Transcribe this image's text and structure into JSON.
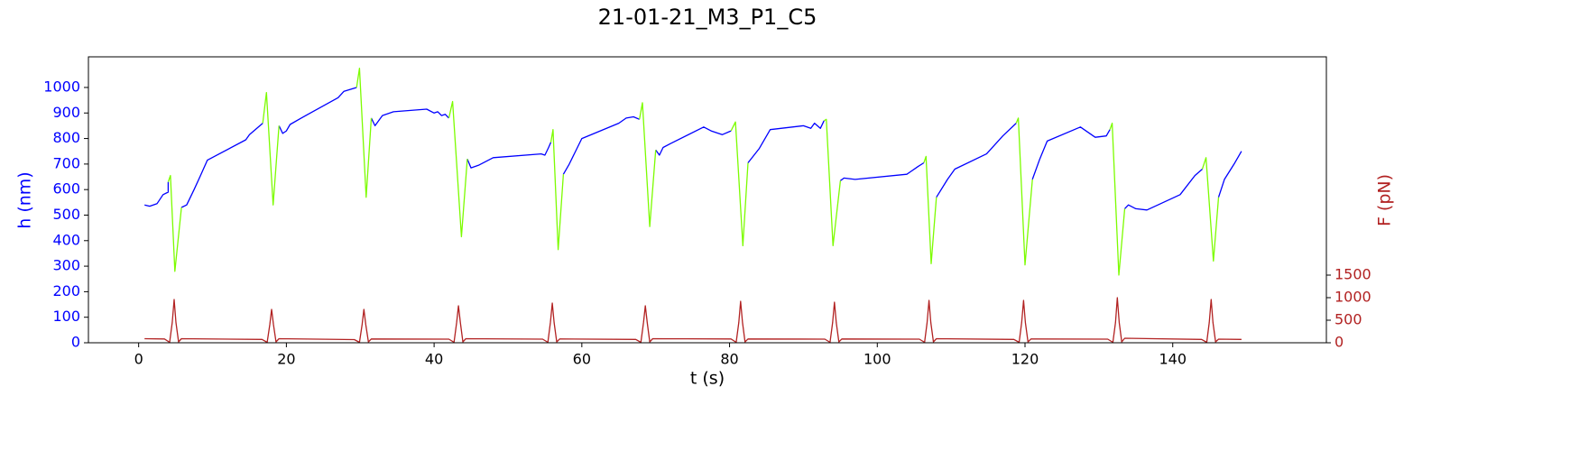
{
  "chart_data": {
    "type": "line",
    "title": "21-01-21_M3_P1_C5",
    "xlabel": "t (s)",
    "ylabel": "h (nm)",
    "y2label": "F (pN)",
    "xlim": [
      -6.8,
      160.8
    ],
    "xticks": [
      0,
      20,
      40,
      60,
      80,
      100,
      120,
      140
    ],
    "ylim": [
      0,
      1120
    ],
    "yticks": [
      0,
      100,
      200,
      300,
      400,
      500,
      600,
      700,
      800,
      900,
      1000
    ],
    "y2lim": [
      0,
      6340
    ],
    "y2ticks": [
      0,
      500,
      1000,
      1500
    ],
    "ycolor": "#0000ff",
    "y2color": "#b22222",
    "grid": false,
    "series": [
      {
        "color": "#0000ff",
        "axis": "y",
        "x": [
          0.8,
          1.5,
          2.5,
          3.3,
          4.0,
          4.0,
          null,
          5.8,
          6.5,
          7.5,
          8.3,
          9.3,
          14.5,
          15.0,
          16.8,
          null,
          19.0,
          19.5,
          20.0,
          20.5,
          22.0,
          27.0,
          27.8,
          29.5,
          null,
          31.5,
          32.0,
          33.0,
          34.5,
          39.0,
          40.0,
          40.5,
          41.0,
          41.5,
          42.0,
          null,
          44.5,
          45.0,
          46.0,
          48.0,
          54.5,
          55.0,
          55.5,
          55.8,
          null,
          57.5,
          58.3,
          60.0,
          65.0,
          66.0,
          67.0,
          67.8,
          null,
          70.0,
          70.5,
          71.0,
          72.0,
          76.5,
          77.5,
          79.0,
          80.2,
          null,
          82.5,
          84.0,
          85.5,
          90.0,
          91.0,
          91.5,
          92.3,
          92.8,
          null,
          95.0,
          95.5,
          97.0,
          104.0,
          104.5,
          105.5,
          106.3,
          null,
          108.0,
          109.5,
          110.5,
          114.8,
          117.0,
          118.8,
          null,
          121.0,
          122.0,
          123.0,
          127.5,
          129.5,
          131.0,
          131.5,
          null,
          133.5,
          134.0,
          135.0,
          136.5,
          141.0,
          143.0,
          144.0,
          null,
          146.2,
          147.0,
          148.3,
          149.3
        ],
        "values": [
          540,
          535,
          545,
          580,
          590,
          630,
          null,
          530,
          540,
          600,
          650,
          715,
          795,
          815,
          860,
          null,
          850,
          820,
          830,
          855,
          880,
          960,
          985,
          1000,
          null,
          880,
          850,
          890,
          905,
          915,
          900,
          905,
          890,
          895,
          880,
          null,
          720,
          685,
          695,
          725,
          740,
          735,
          765,
          785,
          null,
          660,
          700,
          800,
          860,
          880,
          885,
          875,
          null,
          755,
          735,
          765,
          780,
          845,
          830,
          815,
          830,
          null,
          705,
          760,
          835,
          850,
          840,
          860,
          840,
          870,
          null,
          635,
          645,
          640,
          660,
          670,
          690,
          705,
          null,
          570,
          640,
          680,
          740,
          810,
          860,
          null,
          640,
          720,
          790,
          845,
          805,
          810,
          835,
          null,
          525,
          540,
          525,
          520,
          580,
          655,
          680,
          null,
          570,
          640,
          700,
          750
        ]
      },
      {
        "color": "#7cfc00",
        "axis": "y",
        "x": [
          4.0,
          4.3,
          4.9,
          5.8,
          null,
          16.8,
          17.3,
          18.2,
          19.0,
          null,
          29.5,
          29.9,
          30.8,
          31.5,
          null,
          42.0,
          42.5,
          43.7,
          44.5,
          null,
          55.8,
          56.1,
          56.8,
          57.5,
          null,
          67.8,
          68.2,
          69.2,
          70.0,
          null,
          80.2,
          80.8,
          81.8,
          82.5,
          null,
          92.8,
          93.1,
          94.0,
          95.0,
          null,
          106.3,
          106.6,
          107.3,
          108.0,
          null,
          118.8,
          119.1,
          120.0,
          121.0,
          null,
          131.5,
          131.8,
          132.7,
          133.5,
          null,
          144.0,
          144.5,
          145.5,
          146.2
        ],
        "values": [
          630,
          655,
          280,
          530,
          null,
          860,
          980,
          540,
          850,
          null,
          1000,
          1075,
          570,
          880,
          null,
          880,
          945,
          415,
          720,
          null,
          785,
          835,
          365,
          660,
          null,
          875,
          940,
          455,
          755,
          null,
          830,
          865,
          380,
          705,
          null,
          870,
          875,
          380,
          635,
          null,
          705,
          730,
          310,
          570,
          null,
          860,
          880,
          305,
          640,
          null,
          835,
          860,
          265,
          525,
          null,
          680,
          725,
          320,
          570
        ]
      },
      {
        "color": "#b22222",
        "axis": "y2",
        "x": [
          0.8,
          3.5,
          4.2,
          4.55,
          4.8,
          5.05,
          5.4,
          5.8,
          16.7,
          17.4,
          17.75,
          18.0,
          18.25,
          18.6,
          19.0,
          29.2,
          29.9,
          30.25,
          30.5,
          30.75,
          31.1,
          31.5,
          42.0,
          42.7,
          43.05,
          43.3,
          43.55,
          43.9,
          44.3,
          54.7,
          55.4,
          55.75,
          56.0,
          56.25,
          56.6,
          57.0,
          67.3,
          68.0,
          68.35,
          68.6,
          68.85,
          69.2,
          69.6,
          80.2,
          80.9,
          81.25,
          81.5,
          81.75,
          82.1,
          82.5,
          92.9,
          93.6,
          93.95,
          94.2,
          94.45,
          94.8,
          95.2,
          105.7,
          106.4,
          106.75,
          107.0,
          107.25,
          107.6,
          108.0,
          118.5,
          119.2,
          119.55,
          119.8,
          120.05,
          120.4,
          120.8,
          131.2,
          131.9,
          132.25,
          132.5,
          132.75,
          133.1,
          133.5,
          143.9,
          144.6,
          144.95,
          145.2,
          145.45,
          145.8,
          146.2,
          149.3
        ],
        "values": [
          90,
          85,
          10,
          450,
          960,
          450,
          20,
          90,
          75,
          10,
          400,
          740,
          400,
          20,
          90,
          70,
          10,
          400,
          740,
          400,
          20,
          85,
          80,
          10,
          450,
          820,
          450,
          20,
          90,
          80,
          10,
          450,
          880,
          450,
          20,
          85,
          75,
          10,
          450,
          820,
          450,
          20,
          90,
          85,
          10,
          450,
          920,
          450,
          20,
          85,
          80,
          10,
          450,
          900,
          450,
          20,
          85,
          80,
          10,
          450,
          940,
          450,
          20,
          90,
          75,
          10,
          450,
          940,
          450,
          20,
          85,
          80,
          10,
          450,
          1000,
          450,
          20,
          100,
          75,
          10,
          450,
          960,
          450,
          20,
          80,
          75
        ]
      }
    ]
  }
}
